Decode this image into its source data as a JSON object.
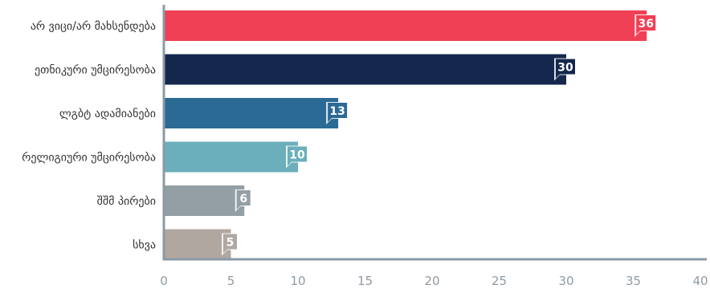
{
  "chart_data": {
    "type": "bar",
    "orientation": "horizontal",
    "title": "",
    "xlabel": "",
    "ylabel": "",
    "categories": [
      "არ ვიცი/არ მახსენდება",
      "ეთნიკური უმცირესობა",
      "ლგბტ ადამიანები",
      "რელიგიური უმცირესობა",
      "შშმ პირები",
      "სხვა"
    ],
    "values": [
      36,
      30,
      13,
      10,
      6,
      5
    ],
    "colors": [
      "#ef4056",
      "#15274d",
      "#2b6a95",
      "#6aafbb",
      "#939fa5",
      "#b0a7a1"
    ],
    "xlim": [
      0,
      40
    ],
    "xticks": [
      0,
      5,
      10,
      15,
      20,
      25,
      30,
      35,
      40
    ],
    "grid": false,
    "axis_color": "#8a9aa6"
  }
}
